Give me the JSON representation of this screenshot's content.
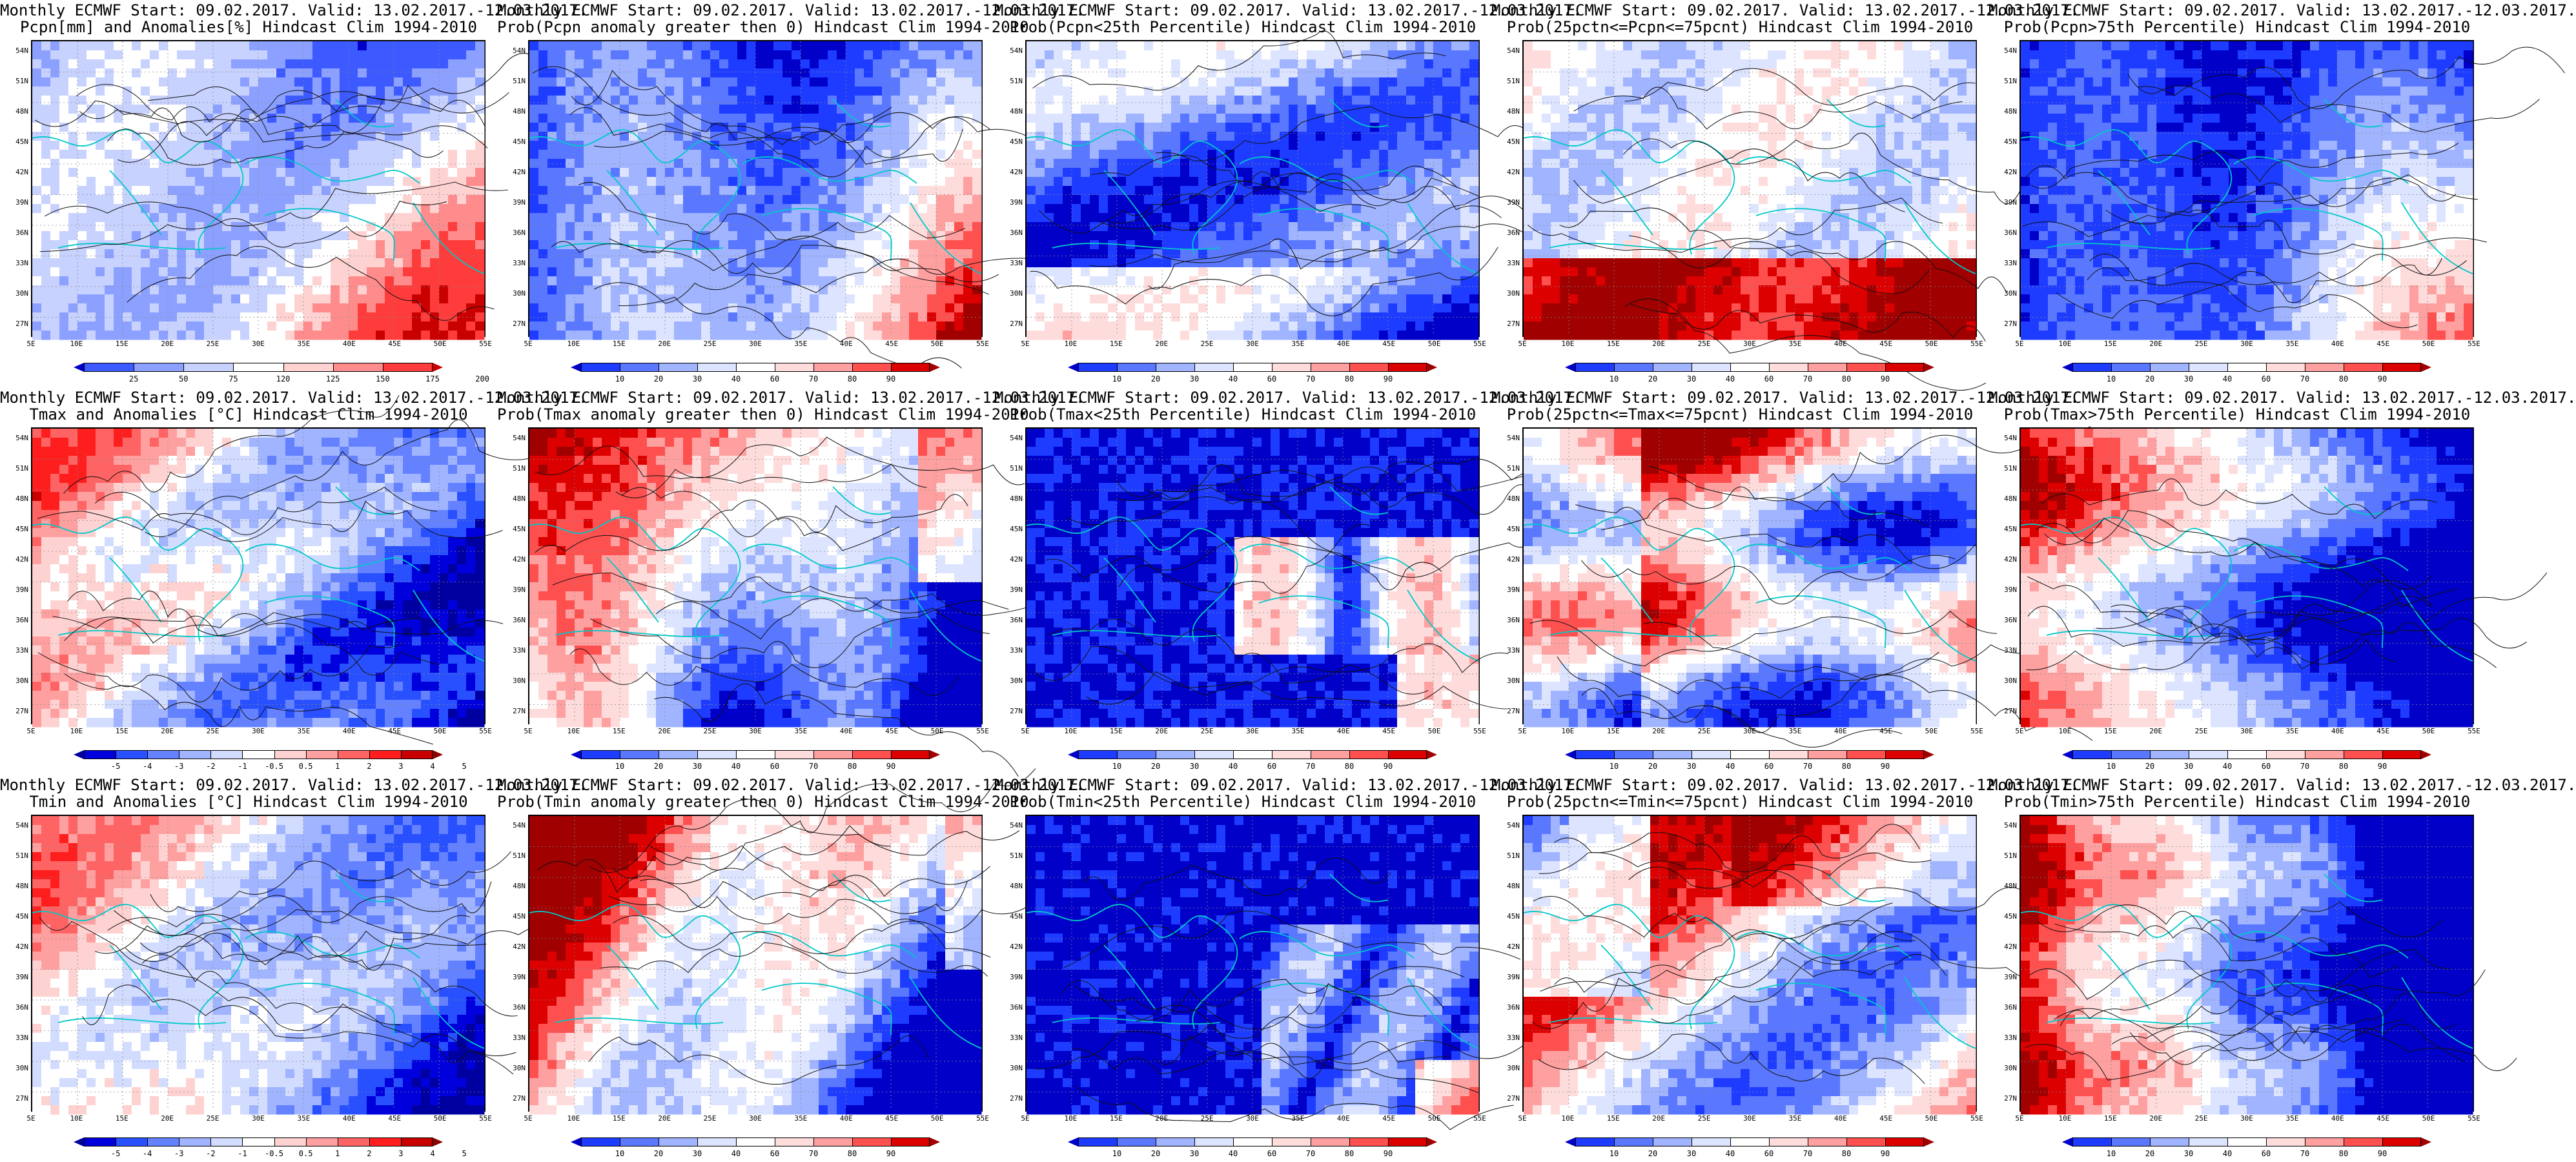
{
  "rows": [
    [
      {
        "line1": "Monthly ECMWF Start: 09.02.2017. Valid: 13.02.2017.-12.03.2017.",
        "line2": "Pcpn[mm] and Anomalies[%] Hindcast Clim 1994-2010",
        "scale": "anom_pcpn",
        "pattern": 0
      },
      {
        "line1": "Monthly ECMWF Start: 09.02.2017. Valid: 13.02.2017.-12.03.2017.",
        "line2": "Prob(Pcpn anomaly greater then 0) Hindcast Clim 1994-2010",
        "scale": "prob",
        "pattern": 1
      },
      {
        "line1": "Monthly ECMWF Start: 09.02.2017. Valid: 13.02.2017.-12.03.2017.",
        "line2": "Prob(Pcpn<25th Percentile) Hindcast Clim 1994-2010",
        "scale": "prob",
        "pattern": 2
      },
      {
        "line1": "Monthly ECMWF Start: 09.02.2017. Valid: 13.02.2017.-12.03.2017.",
        "line2": "Prob(25pctn<=Pcpn<=75pcnt) Hindcast Clim 1994-2010",
        "scale": "prob",
        "pattern": 3
      },
      {
        "line1": "Monthly ECMWF Start: 09.02.2017. Valid: 13.02.2017.-12.03.2017.",
        "line2": "Prob(Pcpn>75th Percentile) Hindcast Clim 1994-2010",
        "scale": "prob",
        "pattern": 4
      }
    ],
    [
      {
        "line1": "Monthly ECMWF Start: 09.02.2017. Valid: 13.02.2017.-12.03.2017.",
        "line2": "Tmax and Anomalies [°C] Hindcast Clim 1994-2010",
        "scale": "anom_temp",
        "pattern": 5
      },
      {
        "line1": "Monthly ECMWF Start: 09.02.2017. Valid: 13.02.2017.-12.03.2017.",
        "line2": "Prob(Tmax anomaly greater then 0) Hindcast Clim 1994-2010",
        "scale": "prob",
        "pattern": 6
      },
      {
        "line1": "Monthly ECMWF Start: 09.02.2017. Valid: 13.02.2017.-12.03.2017.",
        "line2": "Prob(Tmax<25th Percentile) Hindcast Clim 1994-2010",
        "scale": "prob",
        "pattern": 7
      },
      {
        "line1": "Monthly ECMWF Start: 09.02.2017. Valid: 13.02.2017.-12.03.2017.",
        "line2": "Prob(25pctn<=Tmax<=75pcnt) Hindcast Clim 1994-2010",
        "scale": "prob",
        "pattern": 8
      },
      {
        "line1": "Monthly ECMWF Start: 09.02.2017. Valid: 13.02.2017.-12.03.2017.",
        "line2": "Prob(Tmax>75th Percentile) Hindcast Clim 1994-2010",
        "scale": "prob",
        "pattern": 9
      }
    ],
    [
      {
        "line1": "Monthly ECMWF Start: 09.02.2017. Valid: 13.02.2017.-12.03.2017.",
        "line2": "Tmin and Anomalies [°C] Hindcast Clim 1994-2010",
        "scale": "anom_temp",
        "pattern": 10
      },
      {
        "line1": "Monthly ECMWF Start: 09.02.2017. Valid: 13.02.2017.-12.03.2017.",
        "line2": "Prob(Tmin anomaly greater then 0) Hindcast Clim 1994-2010",
        "scale": "prob",
        "pattern": 11
      },
      {
        "line1": "Monthly ECMWF Start: 09.02.2017. Valid: 13.02.2017.-12.03.2017.",
        "line2": "Prob(Tmin<25th Percentile) Hindcast Clim 1994-2010",
        "scale": "prob",
        "pattern": 12
      },
      {
        "line1": "Monthly ECMWF Start: 09.02.2017. Valid: 13.02.2017.-12.03.2017.",
        "line2": "Prob(25pctn<=Tmin<=75pcnt) Hindcast Clim 1994-2010",
        "scale": "prob",
        "pattern": 13
      },
      {
        "line1": "Monthly ECMWF Start: 09.02.2017. Valid: 13.02.2017.-12.03.2017.",
        "line2": "Prob(Tmin>75th Percentile) Hindcast Clim 1994-2010",
        "scale": "prob",
        "pattern": 14
      }
    ]
  ],
  "lat_ticks": [
    "54N",
    "51N",
    "48N",
    "45N",
    "42N",
    "39N",
    "36N",
    "33N",
    "30N",
    "27N"
  ],
  "lon_ticks": [
    "5E",
    "10E",
    "15E",
    "20E",
    "25E",
    "30E",
    "35E",
    "40E",
    "45E",
    "50E",
    "55E"
  ],
  "scales": {
    "prob": {
      "labels": [
        "10",
        "20",
        "30",
        "40",
        "60",
        "70",
        "80",
        "90"
      ],
      "colors": [
        "#0000c8",
        "#1e3cff",
        "#5a78ff",
        "#a0b4ff",
        "#dce4ff",
        "#ffffff",
        "#ffdcdc",
        "#ffa0a0",
        "#ff5050",
        "#dc0000",
        "#a00000"
      ]
    },
    "anom_temp": {
      "labels": [
        "-5",
        "-4",
        "-3",
        "-2",
        "-1",
        "-0.5",
        "0.5",
        "1",
        "2",
        "3",
        "4",
        "5"
      ],
      "colors": [
        "#0000a0",
        "#0000dc",
        "#2850ff",
        "#6482ff",
        "#a0b4ff",
        "#d2dcff",
        "#ffffff",
        "#ffd2d2",
        "#ffa0a0",
        "#ff6464",
        "#ff1e1e",
        "#c80000",
        "#8c0000"
      ]
    },
    "anom_pcpn": {
      "labels": [
        "25",
        "50",
        "75",
        "120",
        "125",
        "150",
        "175",
        "200"
      ],
      "colors": [
        "#0000c8",
        "#3c5aff",
        "#8ca0ff",
        "#c8d2ff",
        "#ffffff",
        "#ffd2d2",
        "#ff8c8c",
        "#ff3c3c",
        "#c80000"
      ]
    }
  }
}
